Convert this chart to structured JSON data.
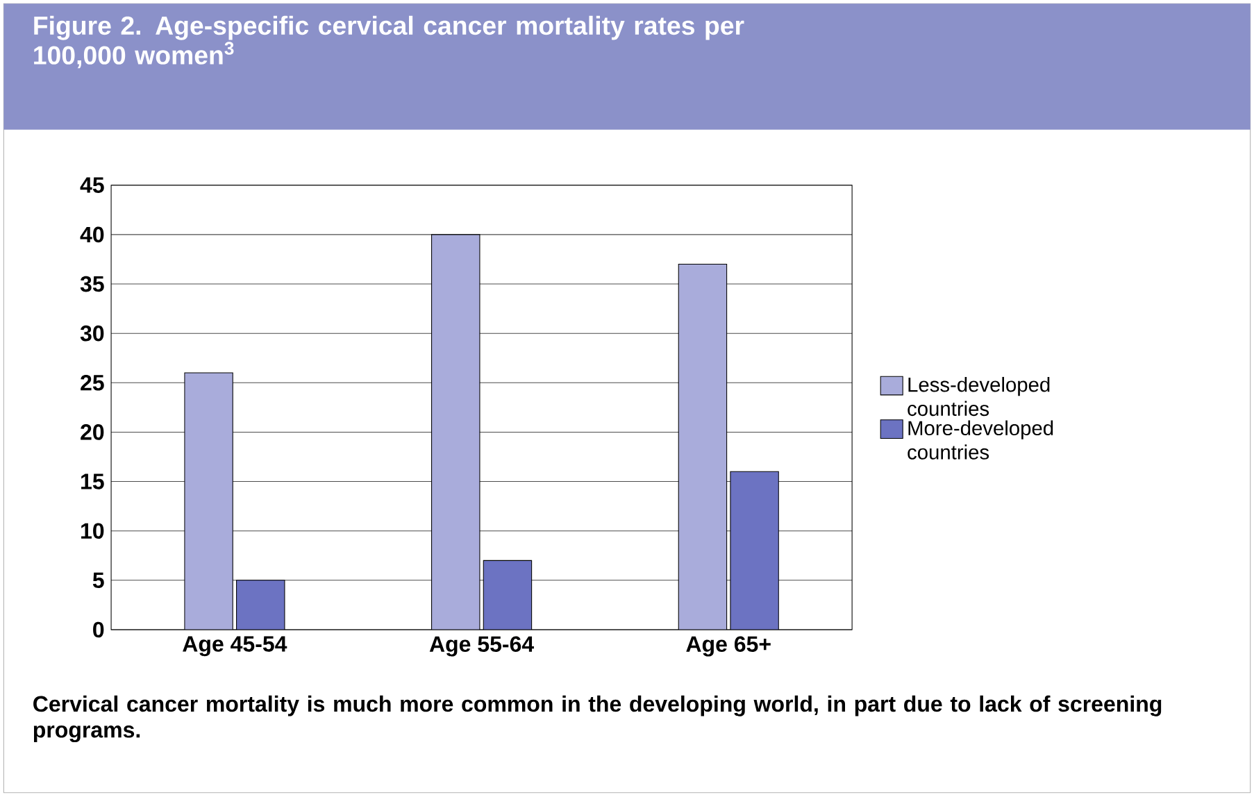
{
  "chart_data": {
    "type": "bar",
    "title": "Figure 2. Age-specific cervical cancer mortality rates per 100,000 women$^{3}$",
    "categories": [
      "Age 45-54",
      "Age 55-64",
      "Age 65+"
    ],
    "series": [
      {
        "name": "Less-developed countries",
        "color": "#a9acdb",
        "values": [
          26,
          40,
          37
        ]
      },
      {
        "name": "More-developed countries",
        "color": "#6c73c2",
        "values": [
          5,
          7,
          16
        ]
      }
    ],
    "ylim": [
      0,
      45
    ],
    "yticks": [
      0,
      5,
      10,
      15,
      20,
      25,
      30,
      35,
      40,
      45
    ],
    "grid": "y",
    "legend": "right",
    "annotations": [
      "Cervical cancer mortality is much more common in the developing world, in part due to lack of screening programs."
    ]
  }
}
